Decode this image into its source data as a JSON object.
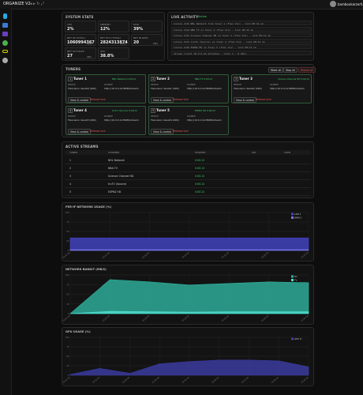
{
  "header": {
    "title": "ORGANIZE V2",
    "user": "bambookarzerful"
  },
  "system_stats": {
    "title": "SYSTEM STATS",
    "items": [
      {
        "label": "CPU",
        "value": "2%"
      },
      {
        "label": "MEMORY",
        "value": "12%"
      },
      {
        "label": "DISK",
        "value": "39%"
      },
      {
        "label": "NET IN (TOTAL)",
        "value": "1060994367",
        "unit": "bytes"
      },
      {
        "label": "NET OUT (TOTAL)",
        "value": "2824313874",
        "unit": "bytes"
      },
      {
        "label": "NET IN RATE",
        "value": "20",
        "unit": "kB/s"
      },
      {
        "label": "NET OUT RATE",
        "value": "27",
        "unit": "kB/s"
      },
      {
        "label": "GPU",
        "value": "38.8%"
      }
    ]
  },
  "live_activity": {
    "title": "LIVE ACTIVITY",
    "status": "Active",
    "lines": [
      "tuning ch22 NHL Network from Tuner 1 (Flex Vis) - lock 00:12 ok",
      "tuning ch24 NBA TV on Tuner 2 (Flex Vis) - lock 00:12 ok",
      "tuning ch31 Science Channel HD on Tuner 3 (Flex Vis) - lock 00:12 ok",
      "tuning ch33 truTV (Source) on Tuner 4 (Flex Vis) - lock 00:12 ok",
      "tuning ch40 ESPN2 HD on Tuner 5 (Flex Vis) - lock 00:12 ok",
      "stream client 10.0.0.24 attached - tuner 1 - 8 kB/s"
    ]
  },
  "tuners": {
    "title": "TUNERS",
    "actions": [
      "Wake all",
      "Stop all",
      "Reboot all"
    ],
    "labels": {
      "device": "DEVICE",
      "source": "SOURCE",
      "view": "View & control",
      "release": "Release lock"
    },
    "cards": [
      {
        "number": "1",
        "name": "Tuner 1",
        "status": "NHL Network 0:00:12",
        "device": "Flexvision devs00 (000)",
        "source": "http://10.0.0.12:8080/stream"
      },
      {
        "number": "2",
        "name": "Tuner 2",
        "status": "NBA TV 0:00:12",
        "device": "Flexvision devs01 (000)",
        "source": "http://10.0.0.12:8080/stream"
      },
      {
        "number": "3",
        "name": "Tuner 3",
        "status": "Science Channel HD 0:00:12",
        "device": "Flexvision devs02 (000)",
        "source": "http://10.0.0.12:8080/stream"
      },
      {
        "number": "4",
        "name": "Tuner 4",
        "status": "truTV (Source) 0:00:12",
        "device": "Flexvision devs03 (000)",
        "source": "http://10.0.0.12:8080/stream"
      },
      {
        "number": "5",
        "name": "Tuner 5",
        "status": "ESPN2 HD 0:00:12",
        "device": "Flexvision devs04 (000)",
        "source": "http://10.0.0.12:8080/stream"
      }
    ]
  },
  "active_streams": {
    "title": "ACTIVE STREAMS",
    "columns": [
      "TUNER",
      "CHANNEL",
      "STARTED",
      "PID",
      "USER"
    ],
    "rows": [
      [
        "1",
        "NHL Network",
        "0:00:12"
      ],
      [
        "2",
        "NBA TV",
        "0:00:12"
      ],
      [
        "3",
        "Science Channel HD",
        "0:00:12"
      ],
      [
        "4",
        "truTV (Source)",
        "0:00:12"
      ],
      [
        "5",
        "ESPN2 HD",
        "0:00:12"
      ]
    ]
  },
  "chart_data": [
    {
      "type": "area",
      "title": "PER-IF NETWORK USAGE (%)",
      "categories": [
        "19:31:00",
        "19:32:00",
        "19:33:00",
        "19:34:00",
        "19:35:00",
        "19:36:00",
        "19:37:00"
      ],
      "series": [
        {
          "name": "LAN 1",
          "color": "#4545c8",
          "values": [
            33,
            33,
            33,
            33,
            33,
            33,
            33
          ]
        },
        {
          "name": "WAN 1",
          "color": "#7a7ae8",
          "values": [
            2,
            2,
            2,
            2,
            2,
            2,
            2
          ]
        }
      ],
      "ylim": [
        0,
        100
      ],
      "yticks": [
        0,
        25,
        50,
        75,
        100
      ],
      "grid": true
    },
    {
      "type": "area",
      "title": "NETWORK BANDIT (MB/S)",
      "categories": [
        "19:31:00",
        "19:32:00",
        "19:33:00",
        "19:34:00",
        "19:35:00",
        "19:36:00",
        "19:37:00"
      ],
      "series": [
        {
          "name": "Rx",
          "color": "#2fb5a0",
          "values": [
            0,
            88,
            82,
            74,
            78,
            82,
            80
          ]
        },
        {
          "name": "Tx",
          "color": "#4fe0cf",
          "values": [
            0,
            6,
            5,
            4,
            5,
            5,
            5
          ]
        }
      ],
      "ylim": [
        0,
        100
      ],
      "yticks": [
        0,
        25,
        50,
        75,
        100
      ],
      "grid": true
    },
    {
      "type": "area",
      "title": "GPU USAGE (%)",
      "categories": [
        "19:31:00",
        "19:32:00",
        "19:33:00",
        "19:34:00",
        "19:35:00",
        "19:36:00",
        "19:37:00",
        "19:38:00",
        "19:39:00"
      ],
      "series": [
        {
          "name": "GPU %",
          "color": "#3d3da8",
          "values": [
            2,
            18,
            5,
            30,
            36,
            40,
            40,
            38,
            22
          ]
        }
      ],
      "ylim": [
        0,
        100
      ],
      "yticks": [
        0,
        25,
        50,
        75,
        100
      ],
      "grid": true
    }
  ]
}
